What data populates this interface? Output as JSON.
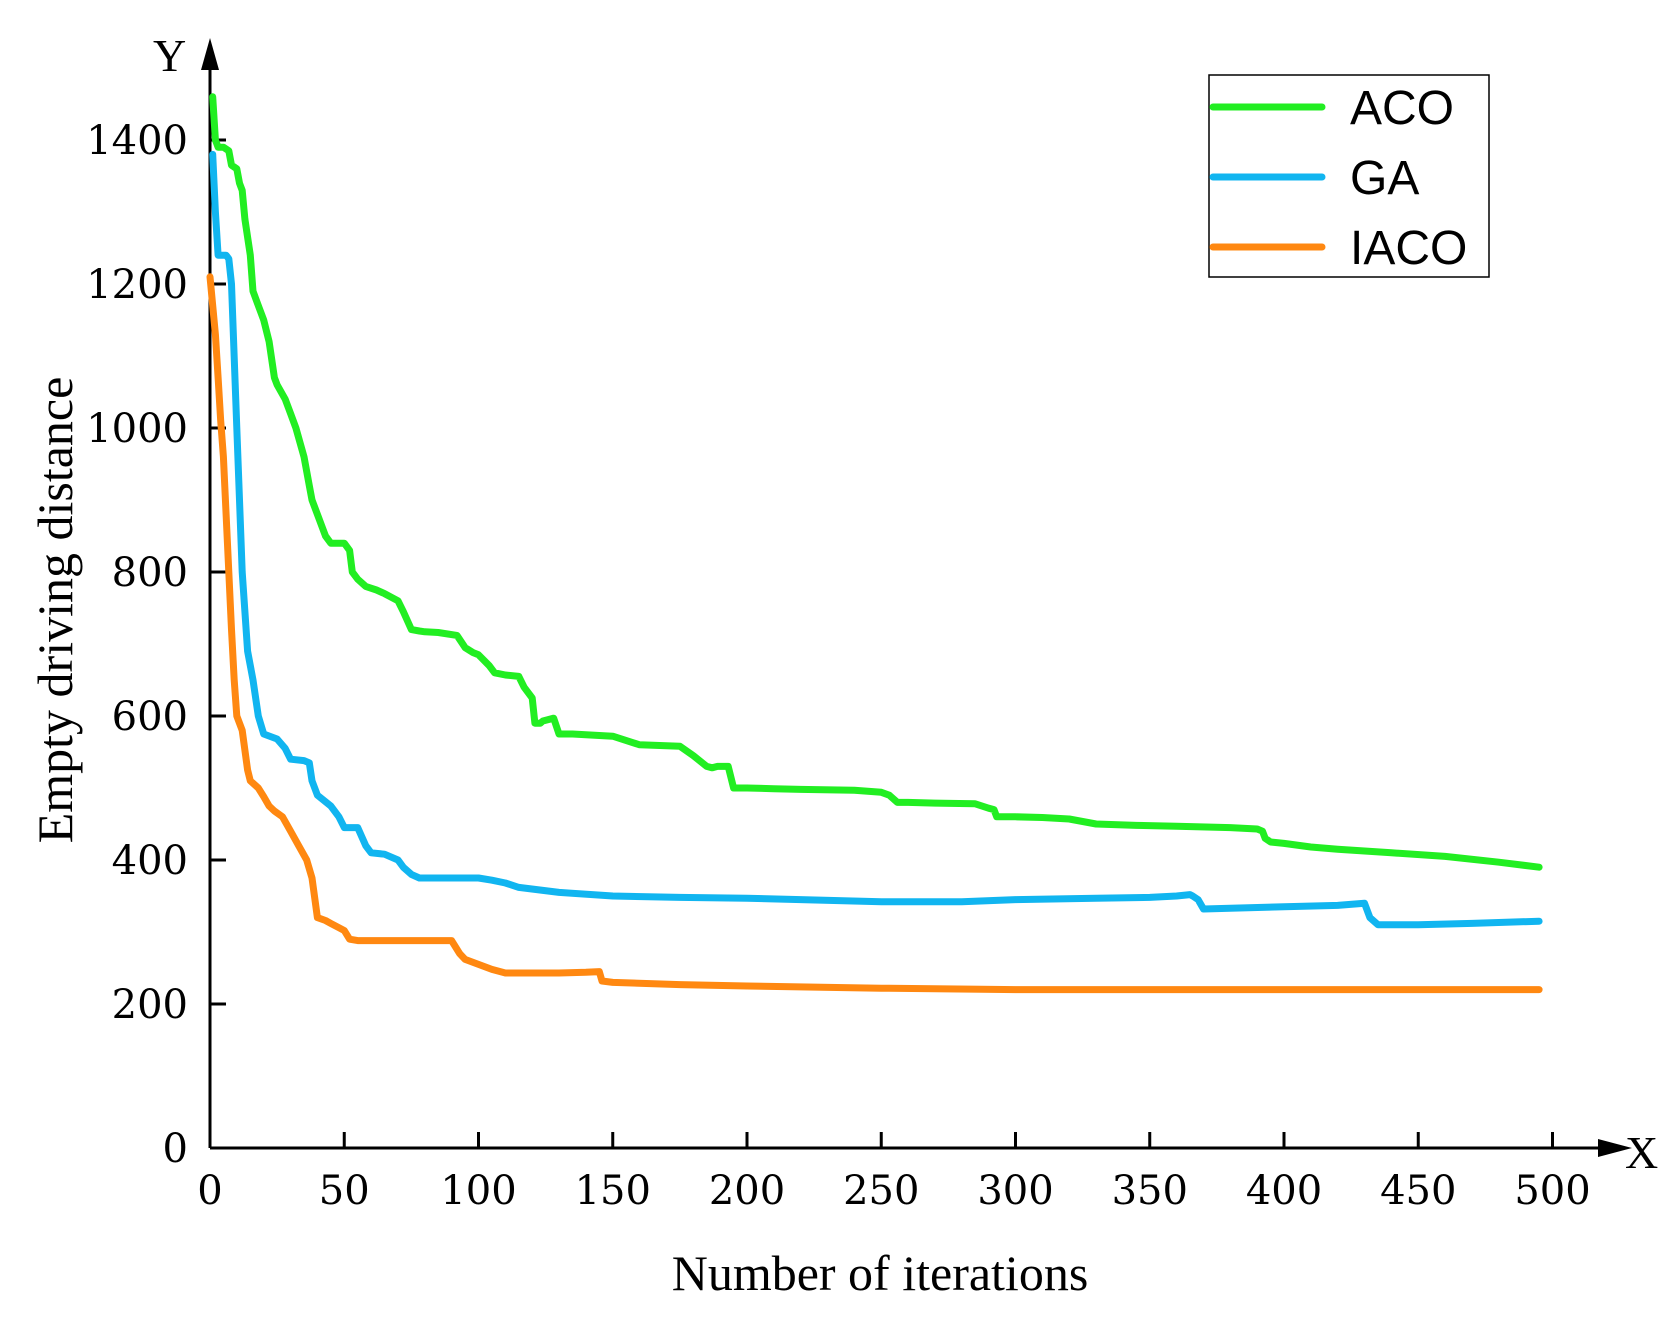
{
  "chart_data": {
    "type": "line",
    "title": "",
    "xlabel": "Number of iterations",
    "ylabel": "Empty driving distance",
    "x_axis_letter": "X",
    "y_axis_letter": "Y",
    "xlim": [
      0,
      520
    ],
    "ylim": [
      0,
      1450
    ],
    "xticks": [
      0,
      50,
      100,
      150,
      200,
      250,
      300,
      350,
      400,
      450,
      500
    ],
    "yticks": [
      0,
      200,
      400,
      600,
      800,
      1000,
      1200,
      1400
    ],
    "legend_position": "top-right",
    "series": [
      {
        "name": "ACO",
        "color": "#22ee22",
        "x": [
          1,
          2,
          3,
          5,
          7,
          8,
          10,
          11,
          12,
          13,
          15,
          16,
          18,
          20,
          22,
          24,
          25,
          28,
          30,
          32,
          35,
          37,
          38,
          40,
          43,
          45,
          48,
          50,
          52,
          53,
          55,
          58,
          62,
          65,
          70,
          72,
          75,
          78,
          80,
          85,
          92,
          95,
          98,
          100,
          104,
          106,
          110,
          115,
          117,
          120,
          121,
          123,
          124,
          128,
          130,
          135,
          140,
          150,
          160,
          175,
          180,
          185,
          187,
          189,
          193,
          195,
          200,
          210,
          220,
          240,
          250,
          253,
          256,
          260,
          270,
          285,
          290,
          292,
          293,
          300,
          310,
          320,
          330,
          345,
          360,
          380,
          390,
          392,
          393,
          395,
          400,
          410,
          420,
          440,
          460,
          480,
          495
        ],
        "values": [
          1460,
          1400,
          1390,
          1390,
          1385,
          1365,
          1360,
          1340,
          1330,
          1290,
          1240,
          1190,
          1170,
          1150,
          1120,
          1070,
          1060,
          1040,
          1020,
          1000,
          960,
          920,
          900,
          880,
          850,
          840,
          840,
          840,
          830,
          800,
          790,
          780,
          775,
          770,
          760,
          745,
          720,
          718,
          717,
          716,
          712,
          695,
          688,
          685,
          670,
          660,
          657,
          655,
          640,
          625,
          590,
          590,
          593,
          597,
          575,
          575,
          574,
          572,
          560,
          558,
          545,
          530,
          528,
          530,
          530,
          500,
          500,
          499,
          498,
          497,
          494,
          490,
          480,
          480,
          479,
          478,
          472,
          470,
          460,
          460,
          459,
          457,
          450,
          448,
          447,
          445,
          443,
          440,
          430,
          425,
          423,
          418,
          415,
          410,
          405,
          397,
          390
        ]
      },
      {
        "name": "GA",
        "color": "#11b5f0",
        "x": [
          1,
          2,
          3,
          4,
          5,
          6,
          7,
          8,
          10,
          12,
          14,
          16,
          18,
          20,
          25,
          28,
          30,
          35,
          37,
          38,
          40,
          45,
          48,
          50,
          55,
          58,
          60,
          65,
          70,
          72,
          75,
          78,
          80,
          90,
          100,
          105,
          110,
          115,
          130,
          150,
          175,
          200,
          220,
          250,
          280,
          300,
          330,
          350,
          360,
          365,
          366,
          368,
          370,
          380,
          400,
          420,
          430,
          432,
          435,
          450,
          470,
          495
        ],
        "values": [
          1380,
          1300,
          1240,
          1240,
          1240,
          1240,
          1235,
          1200,
          1000,
          800,
          690,
          650,
          600,
          575,
          568,
          555,
          540,
          538,
          535,
          510,
          490,
          475,
          460,
          445,
          445,
          420,
          410,
          408,
          400,
          390,
          380,
          375,
          375,
          375,
          375,
          372,
          368,
          362,
          355,
          350,
          348,
          347,
          345,
          342,
          342,
          345,
          347,
          348,
          350,
          352,
          350,
          345,
          332,
          333,
          335,
          337,
          340,
          320,
          310,
          310,
          312,
          315
        ]
      },
      {
        "name": "IACO",
        "color": "#ff8811",
        "x": [
          0,
          1,
          2,
          3,
          4,
          5,
          6,
          7,
          8,
          9,
          10,
          12,
          14,
          15,
          18,
          20,
          22,
          24,
          27,
          30,
          33,
          36,
          38,
          40,
          43,
          45,
          48,
          50,
          52,
          55,
          60,
          70,
          80,
          90,
          93,
          95,
          100,
          105,
          110,
          130,
          140,
          145,
          146,
          150,
          175,
          200,
          250,
          300,
          350,
          400,
          450,
          495
        ],
        "values": [
          1210,
          1170,
          1130,
          1070,
          1010,
          960,
          880,
          800,
          720,
          650,
          600,
          580,
          525,
          510,
          500,
          488,
          475,
          468,
          460,
          440,
          420,
          400,
          375,
          320,
          316,
          312,
          306,
          302,
          290,
          288,
          288,
          288,
          288,
          288,
          270,
          262,
          255,
          248,
          243,
          243,
          244,
          245,
          232,
          230,
          227,
          225,
          222,
          220,
          220,
          220,
          220,
          220
        ]
      }
    ]
  }
}
